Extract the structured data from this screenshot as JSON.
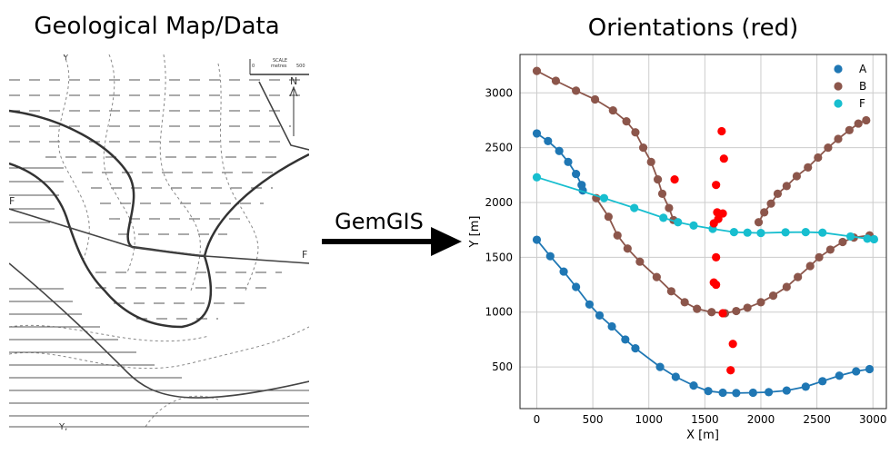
{
  "left_title": "Geological Map/Data",
  "arrow_label": "GemGIS",
  "map": {
    "scale_title": "SCALE",
    "scale_units": "metres",
    "scale_start": "0",
    "scale_end": "500",
    "north": "N",
    "labels": [
      "F",
      "F",
      "Y",
      "Y,"
    ]
  },
  "chart_data": {
    "type": "scatter",
    "title": "Orientations (red)",
    "xlabel": "X [m]",
    "ylabel": "Y [m]",
    "xlim": [
      -150,
      3120
    ],
    "ylim": [
      120,
      3350
    ],
    "xticks": [
      0,
      500,
      1000,
      1500,
      2000,
      2500,
      3000
    ],
    "yticks": [
      500,
      1000,
      1500,
      2000,
      2500,
      3000
    ],
    "grid": true,
    "legend_position": "top-right",
    "series": [
      {
        "name": "A",
        "color": "#1f77b4",
        "line": true,
        "points": [
          [
            0,
            2630
          ],
          [
            100,
            2560
          ],
          [
            200,
            2470
          ],
          [
            280,
            2370
          ],
          [
            350,
            2260
          ],
          [
            400,
            2160
          ],
          [
            410,
            2110
          ]
        ]
      },
      {
        "name": "A",
        "color": "#1f77b4",
        "line": true,
        "points": [
          [
            0,
            1660
          ],
          [
            120,
            1510
          ],
          [
            240,
            1370
          ],
          [
            350,
            1230
          ],
          [
            470,
            1070
          ],
          [
            560,
            970
          ],
          [
            670,
            870
          ],
          [
            790,
            750
          ],
          [
            880,
            670
          ],
          [
            1100,
            500
          ],
          [
            1240,
            410
          ],
          [
            1400,
            330
          ],
          [
            1530,
            280
          ],
          [
            1660,
            265
          ],
          [
            1780,
            262
          ],
          [
            1930,
            265
          ],
          [
            2070,
            270
          ],
          [
            2230,
            285
          ],
          [
            2400,
            320
          ],
          [
            2550,
            370
          ],
          [
            2700,
            420
          ],
          [
            2850,
            460
          ],
          [
            2970,
            480
          ]
        ]
      },
      {
        "name": "B",
        "color": "#8c564b",
        "line": true,
        "points": [
          [
            0,
            3200
          ],
          [
            170,
            3110
          ],
          [
            350,
            3020
          ],
          [
            520,
            2940
          ],
          [
            680,
            2840
          ],
          [
            800,
            2740
          ],
          [
            880,
            2640
          ],
          [
            950,
            2500
          ],
          [
            1020,
            2370
          ],
          [
            1080,
            2210
          ],
          [
            1120,
            2080
          ],
          [
            1180,
            1950
          ],
          [
            1220,
            1840
          ]
        ]
      },
      {
        "name": "B",
        "color": "#8c564b",
        "line": true,
        "points": [
          [
            530,
            2040
          ],
          [
            640,
            1870
          ],
          [
            720,
            1700
          ],
          [
            810,
            1580
          ],
          [
            920,
            1460
          ],
          [
            1070,
            1320
          ],
          [
            1200,
            1190
          ],
          [
            1320,
            1090
          ],
          [
            1430,
            1030
          ],
          [
            1560,
            1000
          ],
          [
            1680,
            990
          ],
          [
            1780,
            1010
          ],
          [
            1880,
            1040
          ],
          [
            2000,
            1090
          ],
          [
            2110,
            1150
          ],
          [
            2230,
            1230
          ],
          [
            2330,
            1320
          ],
          [
            2440,
            1420
          ],
          [
            2520,
            1500
          ],
          [
            2620,
            1570
          ],
          [
            2730,
            1640
          ],
          [
            2830,
            1680
          ],
          [
            2970,
            1700
          ]
        ]
      },
      {
        "name": "B",
        "color": "#8c564b",
        "line": true,
        "points": [
          [
            1980,
            1820
          ],
          [
            2030,
            1910
          ],
          [
            2090,
            1990
          ],
          [
            2150,
            2080
          ],
          [
            2230,
            2150
          ],
          [
            2320,
            2240
          ],
          [
            2420,
            2320
          ],
          [
            2510,
            2410
          ],
          [
            2600,
            2500
          ],
          [
            2690,
            2580
          ],
          [
            2790,
            2660
          ],
          [
            2870,
            2720
          ],
          [
            2940,
            2750
          ]
        ]
      },
      {
        "name": "F",
        "color": "#17becf",
        "line": true,
        "points": [
          [
            0,
            2230
          ],
          [
            600,
            2040
          ],
          [
            870,
            1950
          ],
          [
            1130,
            1860
          ],
          [
            1260,
            1820
          ],
          [
            1400,
            1790
          ],
          [
            1570,
            1760
          ],
          [
            1760,
            1730
          ],
          [
            1880,
            1725
          ],
          [
            2000,
            1722
          ],
          [
            2220,
            1728
          ],
          [
            2400,
            1730
          ],
          [
            2550,
            1725
          ],
          [
            2800,
            1690
          ],
          [
            2950,
            1670
          ],
          [
            3010,
            1665
          ]
        ]
      },
      {
        "name": "",
        "color": "#ff0000",
        "line": false,
        "points": [
          [
            1650,
            2650
          ],
          [
            1670,
            2400
          ],
          [
            1230,
            2210
          ],
          [
            1600,
            2160
          ],
          [
            1610,
            1910
          ],
          [
            1660,
            1900
          ],
          [
            1620,
            1850
          ],
          [
            1580,
            1810
          ],
          [
            1600,
            1500
          ],
          [
            1580,
            1270
          ],
          [
            1600,
            1250
          ],
          [
            1660,
            990
          ],
          [
            1750,
            710
          ],
          [
            1730,
            470
          ]
        ]
      }
    ],
    "legend": [
      {
        "name": "A",
        "color": "#1f77b4"
      },
      {
        "name": "B",
        "color": "#8c564b"
      },
      {
        "name": "F",
        "color": "#17becf"
      }
    ]
  }
}
